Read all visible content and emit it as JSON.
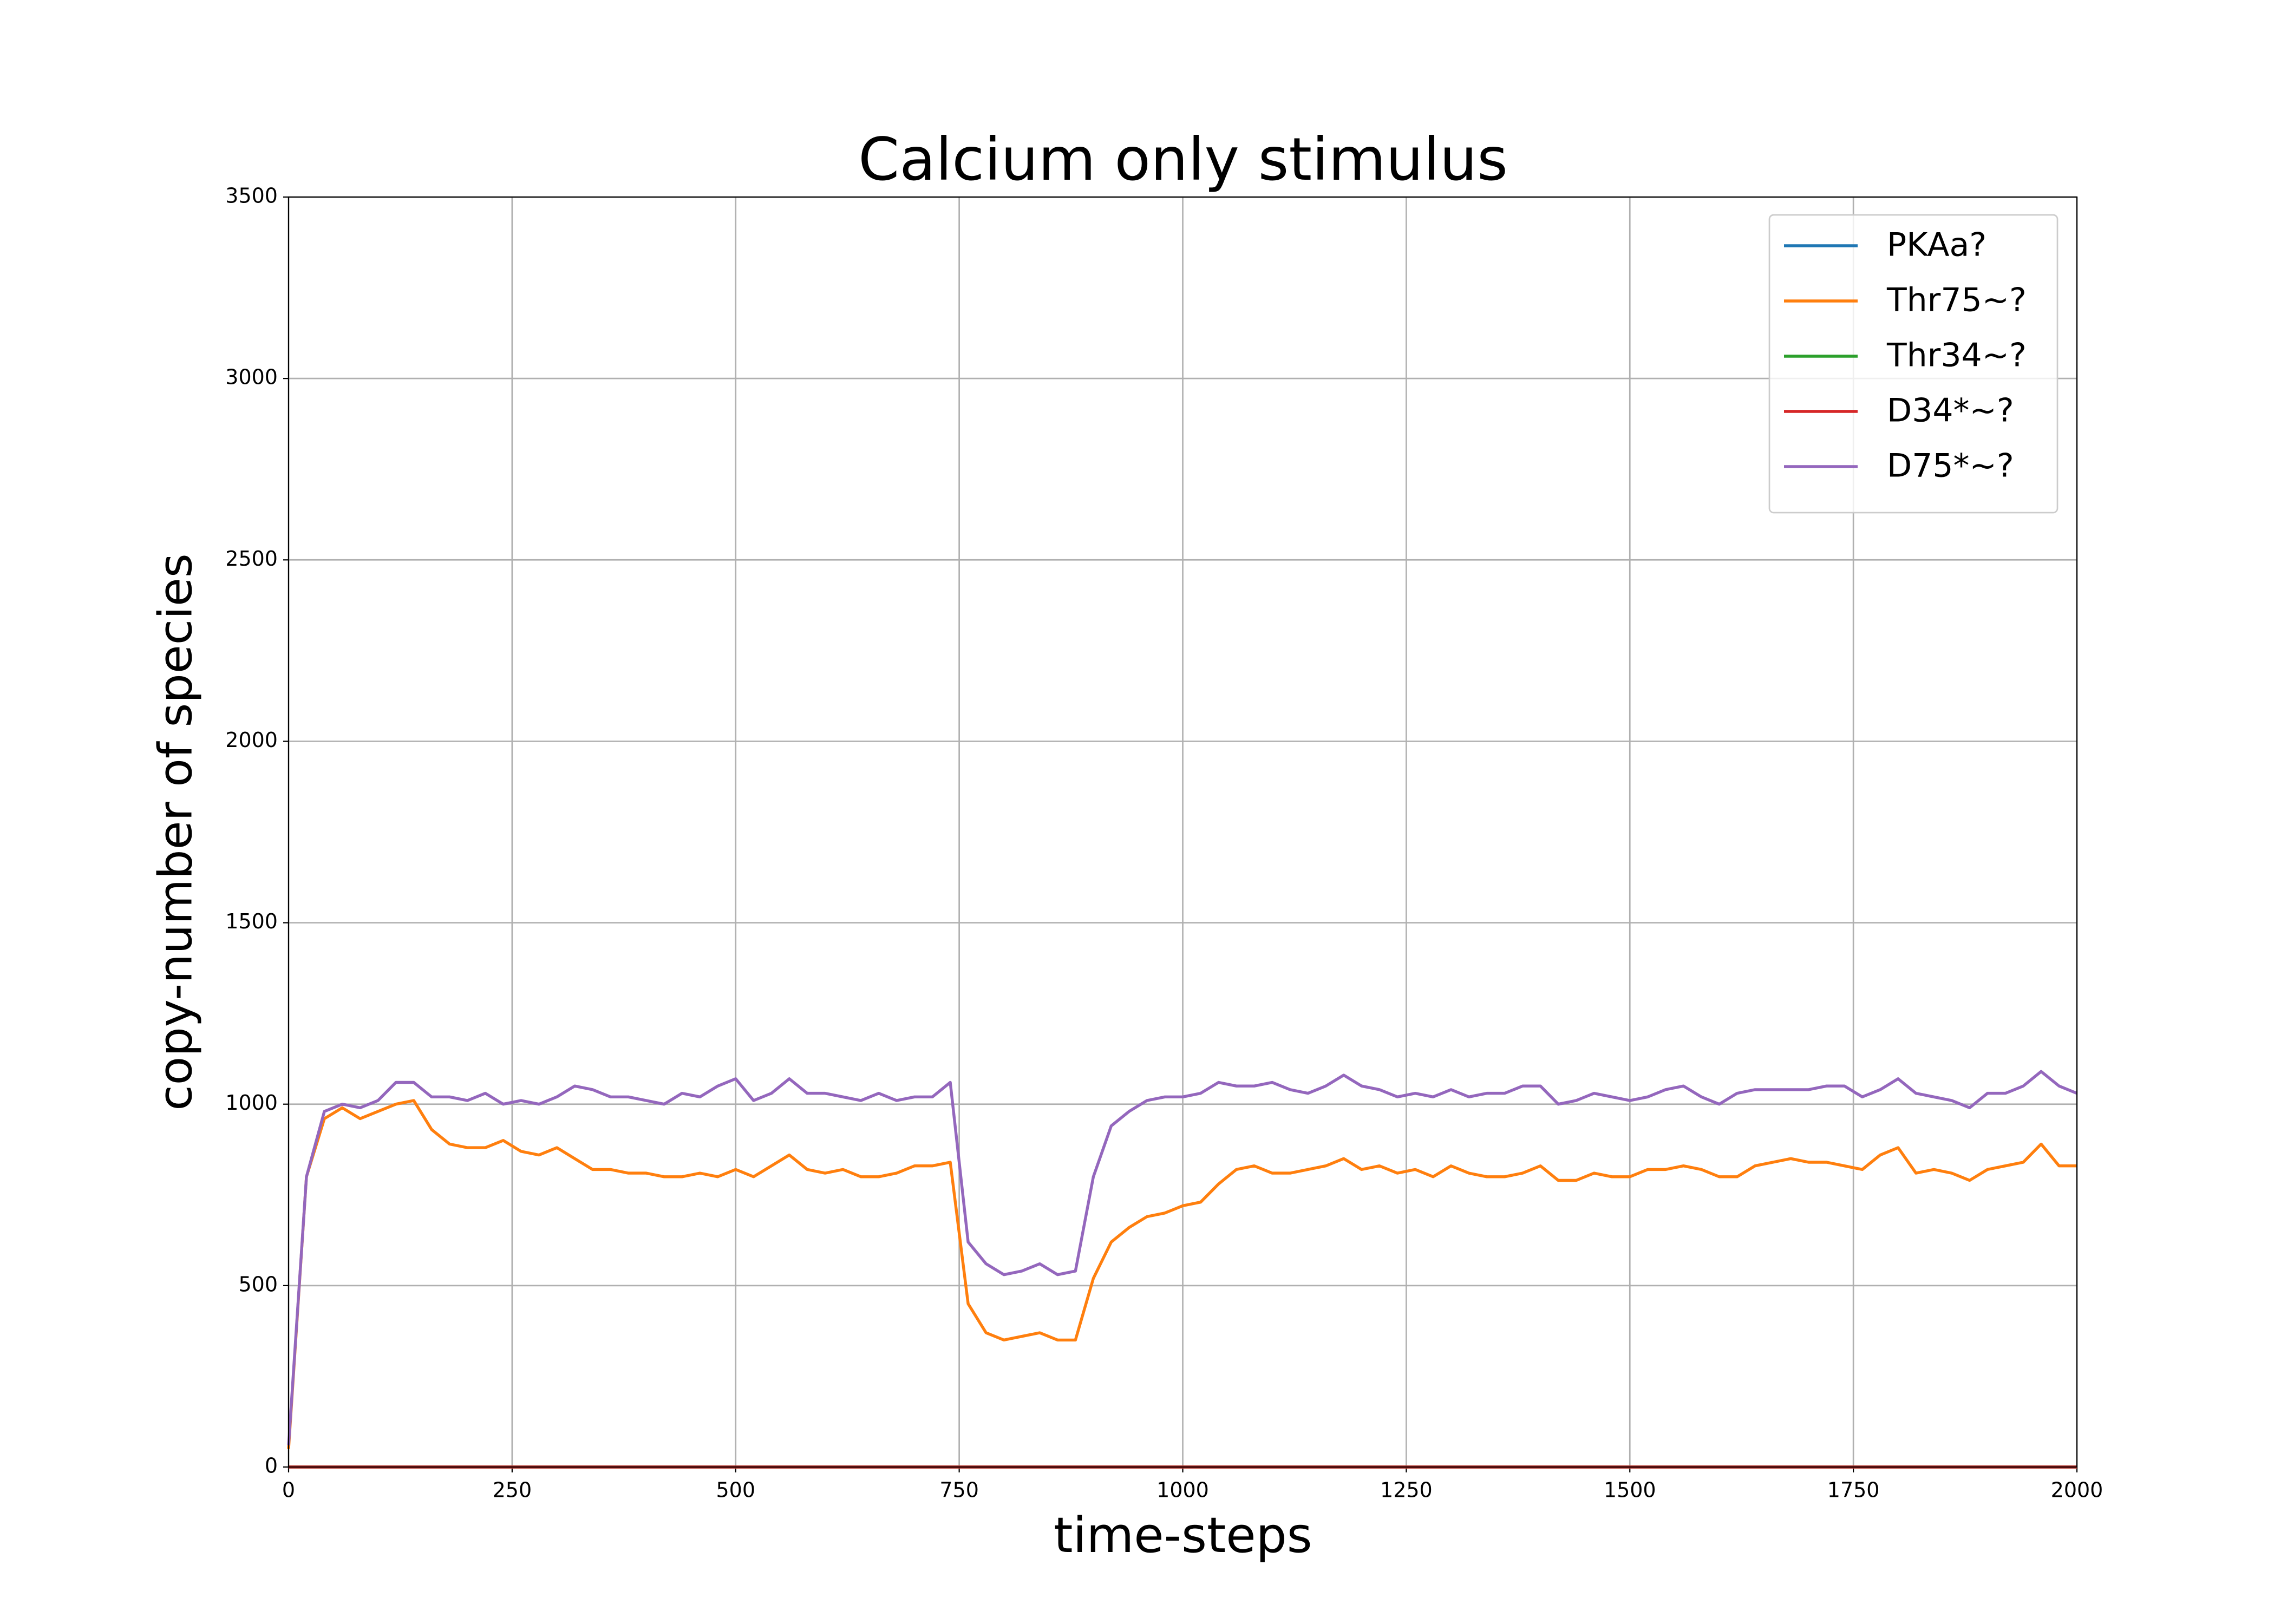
{
  "chart_data": {
    "type": "line",
    "title": "Calcium only stimulus",
    "x_label": "time-steps",
    "y_label": "copy-number of species",
    "x": [
      0,
      20,
      40,
      60,
      80,
      100,
      120,
      140,
      160,
      180,
      200,
      220,
      240,
      260,
      280,
      300,
      320,
      340,
      360,
      380,
      400,
      420,
      440,
      460,
      480,
      500,
      520,
      540,
      560,
      580,
      600,
      620,
      640,
      660,
      680,
      700,
      720,
      740,
      760,
      780,
      800,
      820,
      840,
      860,
      880,
      900,
      920,
      940,
      960,
      980,
      1000,
      1020,
      1040,
      1060,
      1080,
      1100,
      1120,
      1140,
      1160,
      1180,
      1200,
      1220,
      1240,
      1260,
      1280,
      1300,
      1320,
      1340,
      1360,
      1380,
      1400,
      1420,
      1440,
      1460,
      1480,
      1500,
      1520,
      1540,
      1560,
      1580,
      1600,
      1620,
      1640,
      1660,
      1680,
      1700,
      1720,
      1740,
      1760,
      1780,
      1800,
      1820,
      1840,
      1860,
      1880,
      1900,
      1920,
      1940,
      1960,
      1980,
      2000
    ],
    "series": [
      {
        "name": "PKAa?",
        "color": "#1f77b4",
        "values": [
          0,
          0,
          0,
          0,
          0,
          0,
          0,
          0,
          0,
          0,
          0,
          0,
          0,
          0,
          0,
          0,
          0,
          0,
          0,
          0,
          0,
          0,
          0,
          0,
          0,
          0,
          0,
          0,
          0,
          0,
          0,
          0,
          0,
          0,
          0,
          0,
          0,
          0,
          0,
          0,
          0,
          0,
          0,
          0,
          0,
          0,
          0,
          0,
          0,
          0,
          0,
          0,
          0,
          0,
          0,
          0,
          0,
          0,
          0,
          0,
          0,
          0,
          0,
          0,
          0,
          0,
          0,
          0,
          0,
          0,
          0,
          0,
          0,
          0,
          0,
          0,
          0,
          0,
          0,
          0,
          0,
          0,
          0,
          0,
          0,
          0,
          0,
          0,
          0,
          0,
          0,
          0,
          0,
          0,
          0,
          0,
          0,
          0,
          0,
          0,
          0
        ]
      },
      {
        "name": "Thr75~?",
        "color": "#ff7f0e",
        "values": [
          50,
          800,
          960,
          990,
          960,
          980,
          1000,
          1010,
          930,
          890,
          880,
          880,
          900,
          870,
          860,
          880,
          850,
          820,
          820,
          810,
          810,
          800,
          800,
          810,
          800,
          820,
          800,
          830,
          860,
          820,
          810,
          820,
          800,
          800,
          810,
          830,
          830,
          840,
          450,
          370,
          350,
          360,
          370,
          350,
          350,
          520,
          620,
          660,
          690,
          700,
          720,
          730,
          780,
          820,
          830,
          810,
          810,
          820,
          830,
          850,
          820,
          830,
          810,
          820,
          800,
          830,
          810,
          800,
          800,
          810,
          830,
          790,
          790,
          810,
          800,
          800,
          820,
          820,
          830,
          820,
          800,
          800,
          830,
          840,
          850,
          840,
          840,
          830,
          820,
          860,
          880,
          810,
          820,
          810,
          790,
          820,
          830,
          840,
          890,
          830,
          830
        ]
      },
      {
        "name": "Thr34~?",
        "color": "#2ca02c",
        "values": [
          0,
          0,
          0,
          0,
          0,
          0,
          0,
          0,
          0,
          0,
          0,
          0,
          0,
          0,
          0,
          0,
          0,
          0,
          0,
          0,
          0,
          0,
          0,
          0,
          0,
          0,
          0,
          0,
          0,
          0,
          0,
          0,
          0,
          0,
          0,
          0,
          0,
          0,
          0,
          0,
          0,
          0,
          0,
          0,
          0,
          0,
          0,
          0,
          0,
          0,
          0,
          0,
          0,
          0,
          0,
          0,
          0,
          0,
          0,
          0,
          0,
          0,
          0,
          0,
          0,
          0,
          0,
          0,
          0,
          0,
          0,
          0,
          0,
          0,
          0,
          0,
          0,
          0,
          0,
          0,
          0,
          0,
          0,
          0,
          0,
          0,
          0,
          0,
          0,
          0,
          0,
          0,
          0,
          0,
          0,
          0,
          0,
          0,
          0,
          0,
          0
        ]
      },
      {
        "name": "D34*~?",
        "color": "#d62728",
        "values": [
          0,
          0,
          0,
          0,
          0,
          0,
          0,
          0,
          0,
          0,
          0,
          0,
          0,
          0,
          0,
          0,
          0,
          0,
          0,
          0,
          0,
          0,
          0,
          0,
          0,
          0,
          0,
          0,
          0,
          0,
          0,
          0,
          0,
          0,
          0,
          0,
          0,
          0,
          0,
          0,
          0,
          0,
          0,
          0,
          0,
          0,
          0,
          0,
          0,
          0,
          0,
          0,
          0,
          0,
          0,
          0,
          0,
          0,
          0,
          0,
          0,
          0,
          0,
          0,
          0,
          0,
          0,
          0,
          0,
          0,
          0,
          0,
          0,
          0,
          0,
          0,
          0,
          0,
          0,
          0,
          0,
          0,
          0,
          0,
          0,
          0,
          0,
          0,
          0,
          0,
          0,
          0,
          0,
          0,
          0,
          0,
          0,
          0,
          0,
          0,
          0
        ]
      },
      {
        "name": "D75*~?",
        "color": "#9467bd",
        "values": [
          60,
          800,
          980,
          1000,
          990,
          1010,
          1060,
          1060,
          1020,
          1020,
          1010,
          1030,
          1000,
          1010,
          1000,
          1020,
          1050,
          1040,
          1020,
          1020,
          1010,
          1000,
          1030,
          1020,
          1050,
          1070,
          1010,
          1030,
          1070,
          1030,
          1030,
          1020,
          1010,
          1030,
          1010,
          1020,
          1020,
          1060,
          620,
          560,
          530,
          540,
          560,
          530,
          540,
          800,
          940,
          980,
          1010,
          1020,
          1020,
          1030,
          1060,
          1050,
          1050,
          1060,
          1040,
          1030,
          1050,
          1080,
          1050,
          1040,
          1020,
          1030,
          1020,
          1040,
          1020,
          1030,
          1030,
          1050,
          1050,
          1000,
          1010,
          1030,
          1020,
          1010,
          1020,
          1040,
          1050,
          1020,
          1000,
          1030,
          1040,
          1040,
          1040,
          1040,
          1050,
          1050,
          1020,
          1040,
          1070,
          1030,
          1020,
          1010,
          990,
          1030,
          1030,
          1050,
          1090,
          1050,
          1030
        ]
      }
    ],
    "xlim": [
      0,
      2000
    ],
    "xticks": [
      0,
      250,
      500,
      750,
      1000,
      1250,
      1500,
      1750,
      2000
    ],
    "ylim": [
      0,
      3500
    ],
    "yticks": [
      0,
      500,
      1000,
      1500,
      2000,
      2500,
      3000,
      3500
    ],
    "grid": true,
    "legend": "upper right"
  }
}
